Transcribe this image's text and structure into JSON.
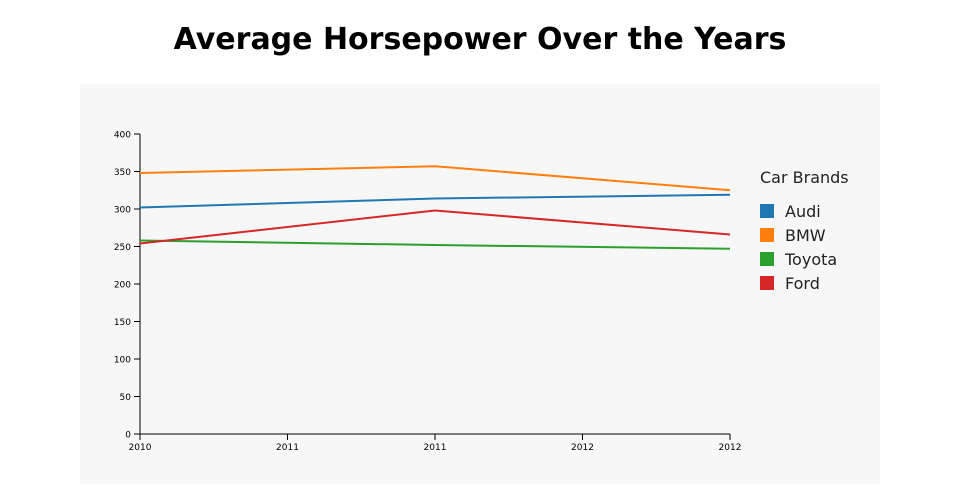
{
  "chart_data": {
    "type": "line",
    "title": "Average Horsepower Over the Years",
    "x": [
      "2010",
      "2011",
      "2012"
    ],
    "x_ticks": [
      "2010",
      "2011",
      "2011",
      "2012",
      "2012"
    ],
    "y_ticks": [
      "0",
      "50",
      "100",
      "150",
      "200",
      "250",
      "300",
      "350",
      "400"
    ],
    "ylim": [
      0,
      400
    ],
    "grid": false,
    "legend": {
      "title": "Car Brands",
      "placement": "right"
    },
    "series": [
      {
        "name": "Audi",
        "color": "#1f77b4",
        "values": [
          302,
          314,
          319
        ]
      },
      {
        "name": "BMW",
        "color": "#ff7f0e",
        "values": [
          348,
          357,
          325
        ]
      },
      {
        "name": "Toyota",
        "color": "#2ca02c",
        "values": [
          258,
          252,
          247
        ]
      },
      {
        "name": "Ford",
        "color": "#d62728",
        "values": [
          254,
          298,
          266
        ]
      }
    ]
  }
}
